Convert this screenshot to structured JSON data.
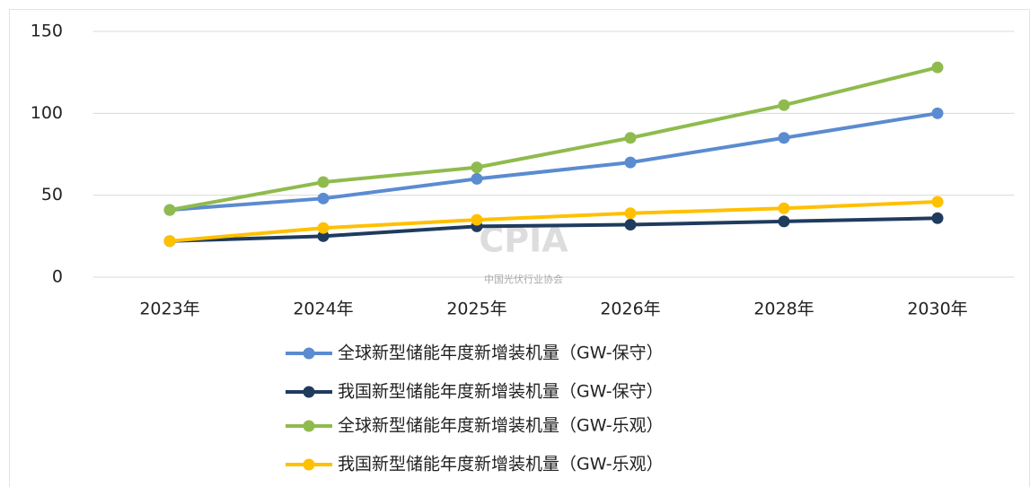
{
  "chart_data": {
    "type": "line",
    "categories": [
      "2023年",
      "2024年",
      "2025年",
      "2026年",
      "2028年",
      "2030年"
    ],
    "series": [
      {
        "name": "全球新型储能年度新增装机量（GW-保守）",
        "color": "#5b8bd0",
        "values": [
          41,
          48,
          60,
          70,
          85,
          100
        ]
      },
      {
        "name": "我国新型储能年度新增装机量（GW-保守）",
        "color": "#1f3b5e",
        "values": [
          22,
          25,
          31,
          32,
          34,
          36
        ]
      },
      {
        "name": "全球新型储能年度新增装机量（GW-乐观）",
        "color": "#8fbb4e",
        "values": [
          41,
          58,
          67,
          85,
          105,
          128
        ]
      },
      {
        "name": "我国新型储能年度新增装机量（GW-乐观）",
        "color": "#ffc000",
        "values": [
          22,
          30,
          35,
          39,
          42,
          46
        ]
      }
    ],
    "ylim": [
      0,
      150
    ],
    "yticks": [
      0,
      50,
      100,
      150
    ],
    "grid": true,
    "watermark": [
      "CPIA",
      "中国光伏行业协会"
    ]
  }
}
